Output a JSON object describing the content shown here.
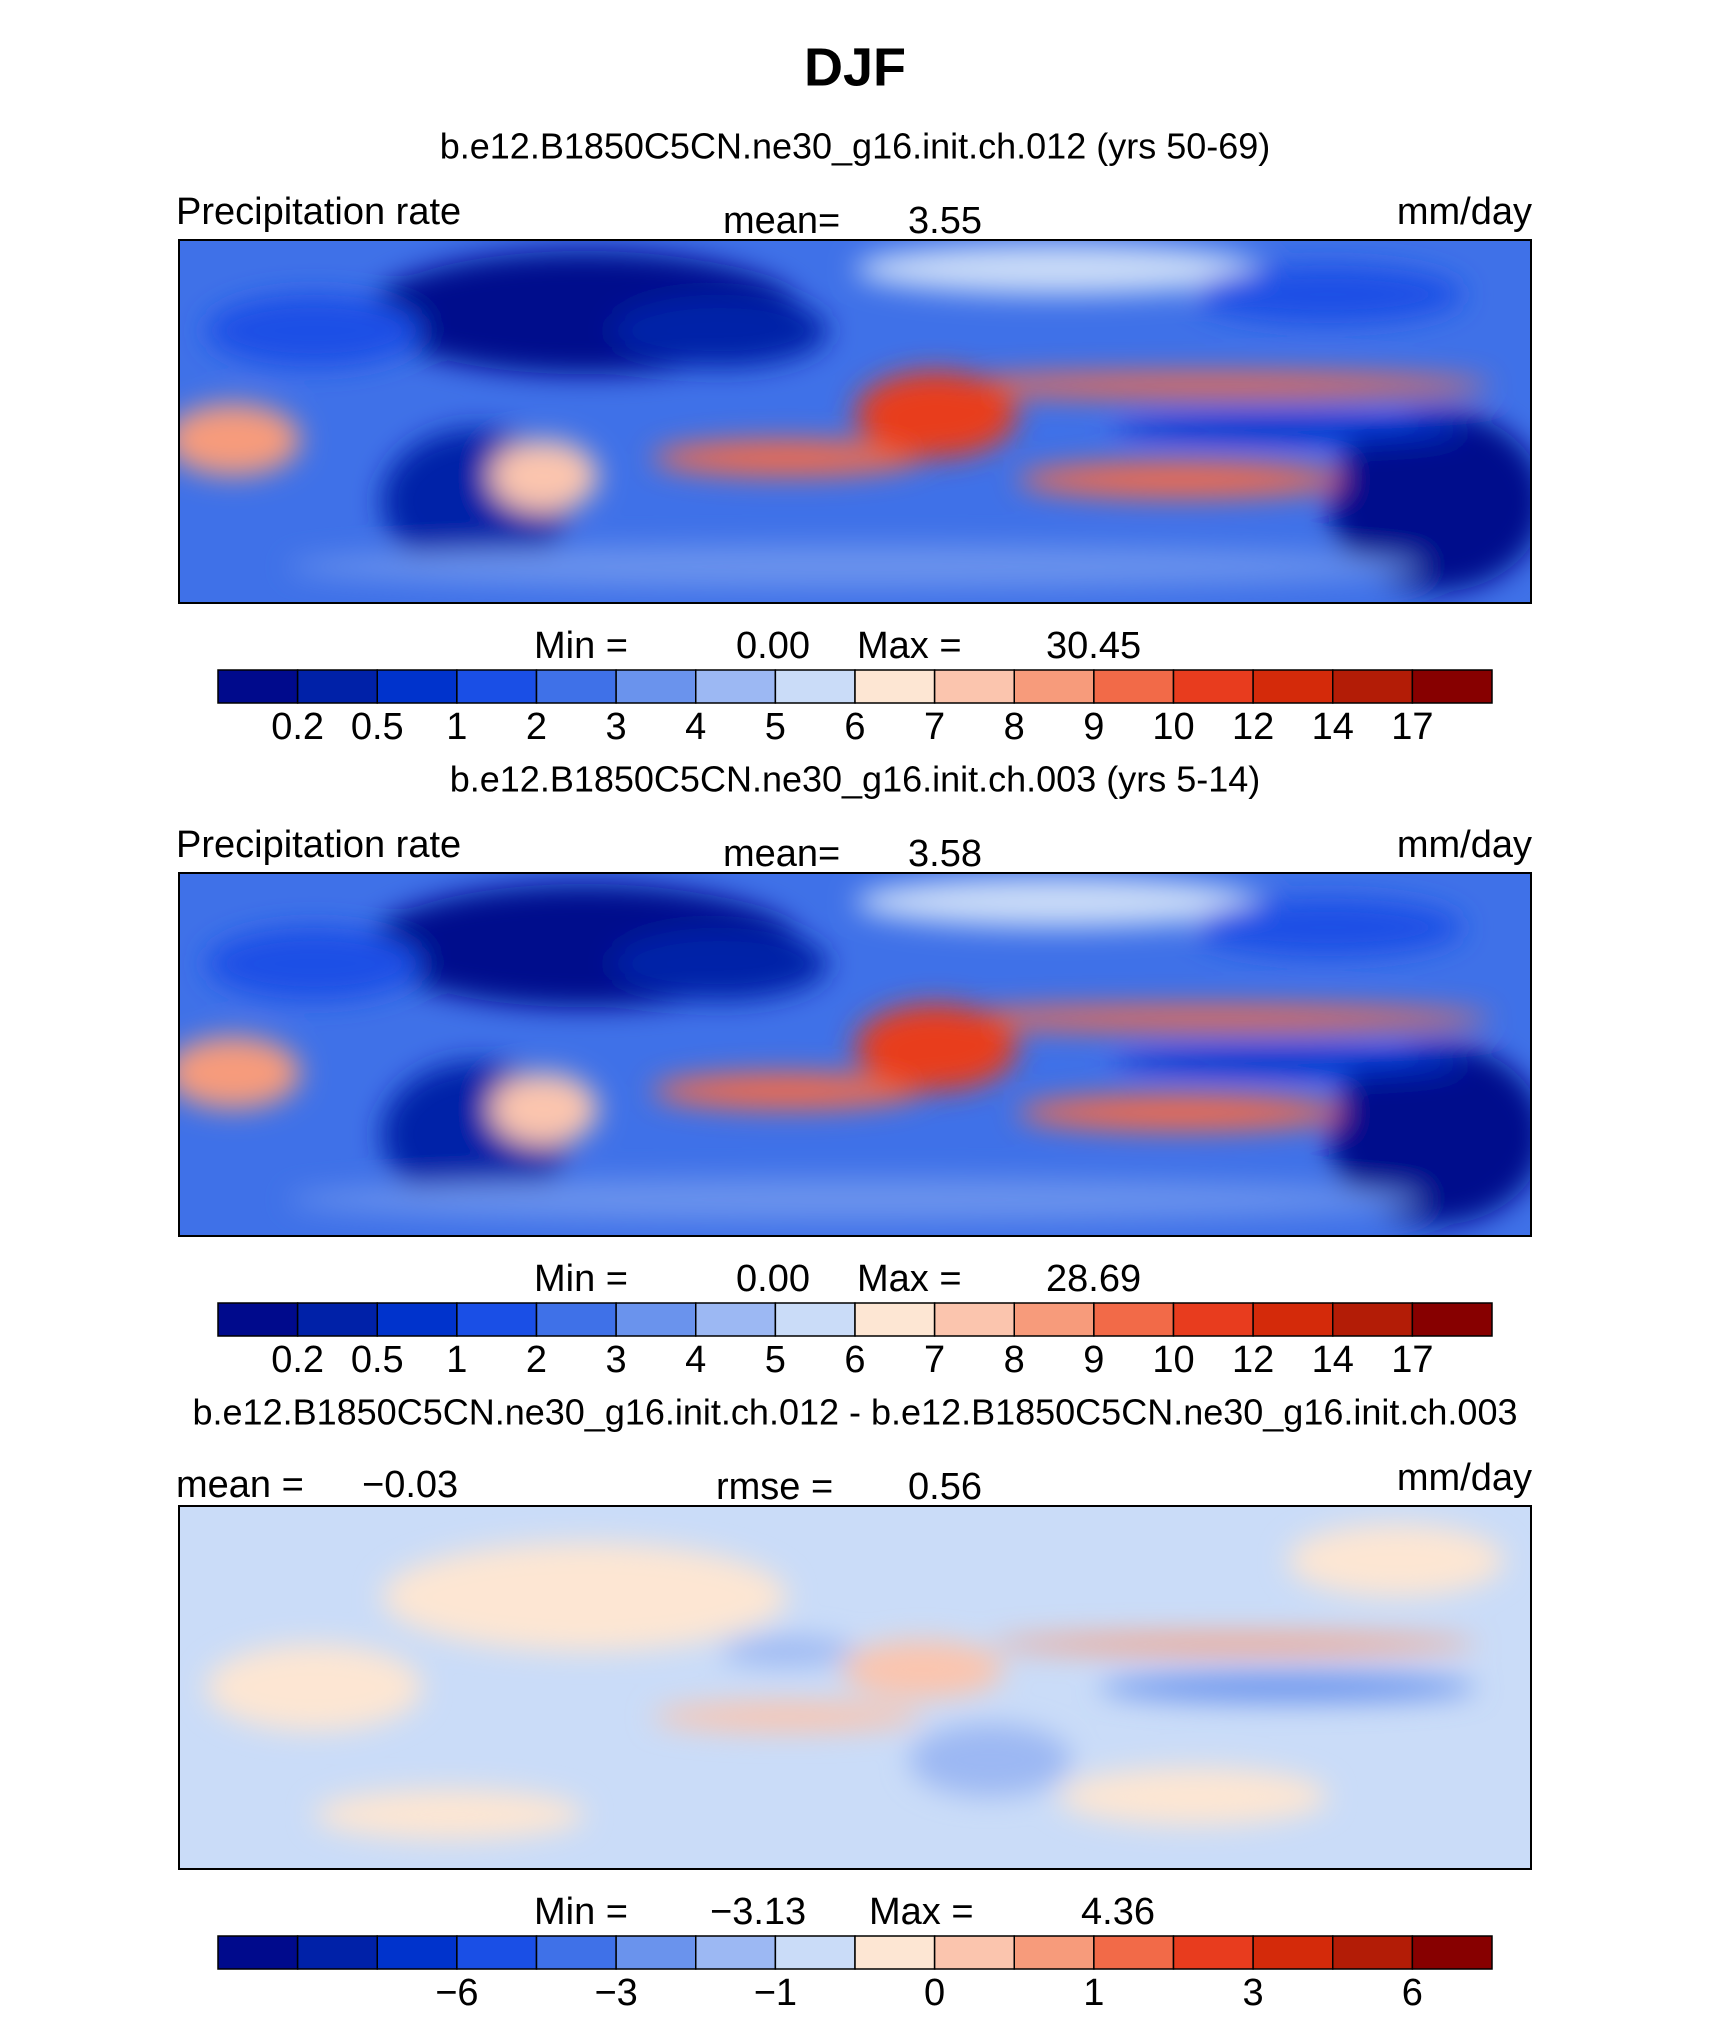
{
  "title": "DJF",
  "colorbar_colors": [
    "#000a8c",
    "#0021a8",
    "#0033cc",
    "#1a4fe6",
    "#3f71e8",
    "#6a93ed",
    "#9cb8f3",
    "#cadcf8",
    "#fde6d3",
    "#fbc5ae",
    "#f79b7b",
    "#f26a48",
    "#e83c1e",
    "#d42a0a",
    "#b31c06",
    "#870000"
  ],
  "panels": [
    {
      "title": "b.e12.B1850C5CN.ne30_g16.init.ch.012 (yrs 50-69)",
      "left_label": "Precipitation rate",
      "stat_label": "mean=",
      "stat_value": "3.55",
      "units": "mm/day",
      "min_label": "Min =",
      "min_value": "0.00",
      "max_label": "Max =",
      "max_value": "30.45",
      "colorbar_labels": [
        "0.2",
        "0.5",
        "1",
        "2",
        "3",
        "4",
        "5",
        "6",
        "7",
        "8",
        "9",
        "10",
        "12",
        "14",
        "17"
      ]
    },
    {
      "title": "b.e12.B1850C5CN.ne30_g16.init.ch.003 (yrs 5-14)",
      "left_label": "Precipitation rate",
      "stat_label": "mean=",
      "stat_value": "3.58",
      "units": "mm/day",
      "min_label": "Min =",
      "min_value": "0.00",
      "max_label": "Max =",
      "max_value": "28.69",
      "colorbar_labels": [
        "0.2",
        "0.5",
        "1",
        "2",
        "3",
        "4",
        "5",
        "6",
        "7",
        "8",
        "9",
        "10",
        "12",
        "14",
        "17"
      ]
    },
    {
      "title": "b.e12.B1850C5CN.ne30_g16.init.ch.012 - b.e12.B1850C5CN.ne30_g16.init.ch.003",
      "left_label": "mean =",
      "left_value": "−0.03",
      "stat_label": "rmse =",
      "stat_value": "0.56",
      "units": "mm/day",
      "min_label": "Min =",
      "min_value": "−3.13",
      "max_label": "Max =",
      "max_value": "4.36",
      "colorbar_labels": [
        null,
        null,
        "−6",
        null,
        "−3",
        null,
        "−1",
        null,
        "0",
        null,
        "1",
        null,
        "3",
        null,
        "6"
      ]
    }
  ]
}
